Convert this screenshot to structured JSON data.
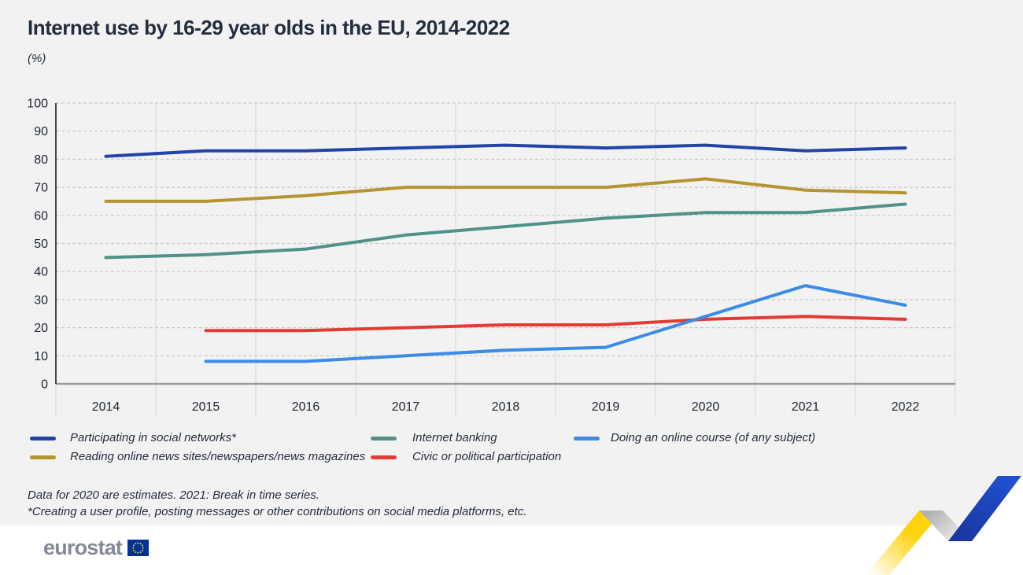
{
  "page": {
    "title": "Internet use by 16-29 year olds in the EU, 2014-2022",
    "subtitle": "(%)",
    "footnotes": [
      "Data for 2020 are estimates. 2021: Break in time series.",
      "*Creating a user profile, posting messages or other contributions on social media platforms, etc."
    ],
    "logo_text": "eurostat"
  },
  "colors": {
    "page_background": "#ffffff",
    "panel_background": "#f2f2f2",
    "axis_dark": "#43474c",
    "axis_baseline": "#9b9b9b",
    "gridline_dashed": "#c9c9c9",
    "gridline_vertical": "#dcdcdc",
    "text": "#242d3e",
    "logo_gray": "#858b96",
    "eu_flag_blue": "#003399",
    "eu_flag_star": "#ffcc00",
    "ribbon_yellow": "#ffd20e",
    "ribbon_gray": "#b0b0b0",
    "ribbon_blue": "#2148c4"
  },
  "chart_data": {
    "type": "line",
    "title": "Internet use by 16-29 year olds in the EU, 2014-2022",
    "ylabel": "(%)",
    "xlabel": "",
    "x": [
      2014,
      2015,
      2016,
      2017,
      2018,
      2019,
      2020,
      2021,
      2022
    ],
    "ylim": [
      0,
      100
    ],
    "y_ticks": [
      0,
      10,
      20,
      30,
      40,
      50,
      60,
      70,
      80,
      90,
      100
    ],
    "grid": true,
    "legend_position": "bottom",
    "series": [
      {
        "name": "Participating in social networks*",
        "slug": "social-networks",
        "color": "#2244a9",
        "values": [
          81,
          83,
          83,
          84,
          85,
          84,
          85,
          83,
          84
        ]
      },
      {
        "name": "Reading online news sites/newspapers/news magazines",
        "slug": "online-news",
        "color": "#b5952f",
        "values": [
          65,
          65,
          67,
          70,
          70,
          70,
          73,
          69,
          68
        ]
      },
      {
        "name": "Internet banking",
        "slug": "internet-banking",
        "color": "#4f9287",
        "values": [
          45,
          46,
          48,
          53,
          56,
          59,
          61,
          61,
          64
        ]
      },
      {
        "name": "Civic or political participation",
        "slug": "civic-participation",
        "color": "#e23b33",
        "values": [
          null,
          19,
          19,
          20,
          21,
          21,
          23,
          24,
          23
        ]
      },
      {
        "name": "Doing an online course (of any subject)",
        "slug": "online-course",
        "color": "#3c8be4",
        "values": [
          null,
          8,
          8,
          10,
          12,
          13,
          24,
          35,
          28
        ]
      }
    ]
  }
}
